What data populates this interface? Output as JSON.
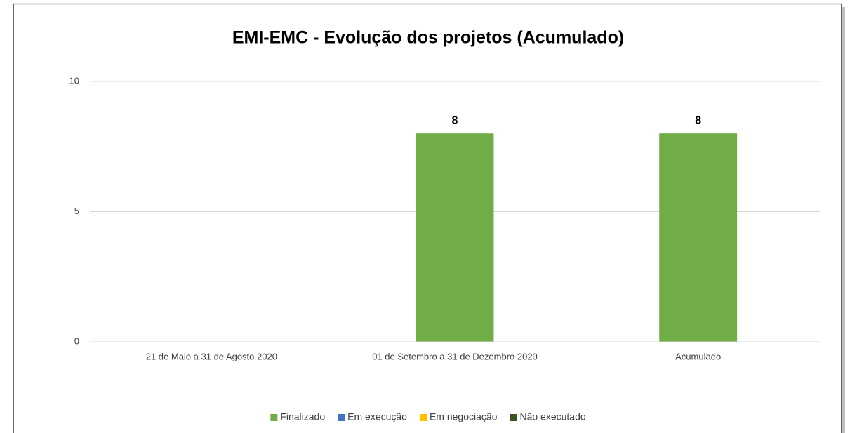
{
  "chart_data": {
    "type": "bar",
    "stacked": true,
    "title": "EMI-EMC - Evolução dos projetos (Acumulado)",
    "categories": [
      "21  de Maio a 31 de Agosto 2020",
      "01 de Setembro a 31 de Dezembro 2020",
      "Acumulado"
    ],
    "series": [
      {
        "name": "Finalizado",
        "color": "#70ad47",
        "values": [
          null,
          8,
          8
        ]
      },
      {
        "name": "Em execução",
        "color": "#4472c4",
        "values": [
          null,
          null,
          null
        ]
      },
      {
        "name": "Em negociação",
        "color": "#ffc000",
        "values": [
          null,
          null,
          null
        ]
      },
      {
        "name": "Não executado",
        "color": "#375623",
        "values": [
          null,
          null,
          null
        ]
      }
    ],
    "ylim": [
      0,
      10
    ],
    "yticks": [
      0,
      5,
      10
    ],
    "grid": true,
    "legend": "bottom",
    "data_labels": true
  }
}
